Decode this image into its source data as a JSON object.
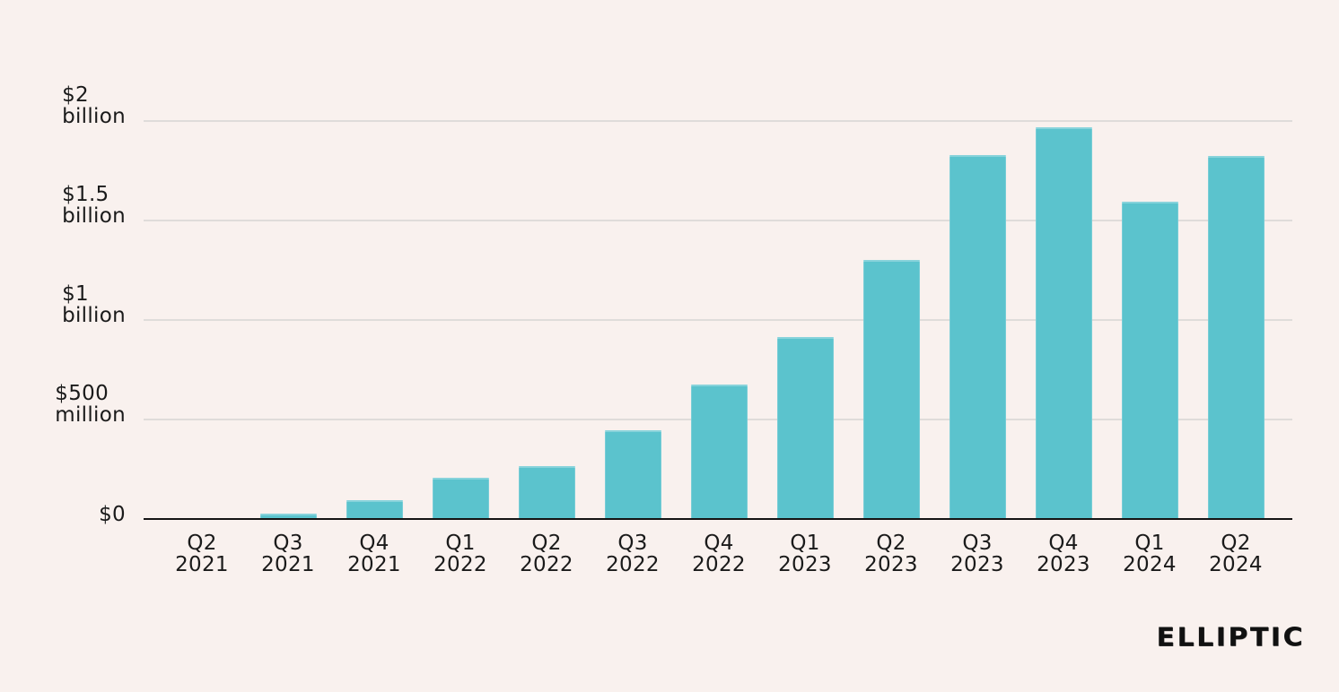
{
  "chart_data": {
    "type": "bar",
    "title": "",
    "categories": [
      "Q2 2021",
      "Q3 2021",
      "Q4 2021",
      "Q1 2022",
      "Q2 2022",
      "Q3 2022",
      "Q4 2022",
      "Q1 2023",
      "Q2 2023",
      "Q3 2023",
      "Q4 2023",
      "Q1 2024",
      "Q2 2024"
    ],
    "values_usd_millions": [
      5,
      25,
      95,
      205,
      267,
      447,
      674,
      916,
      1300,
      1830,
      1969,
      1595,
      1823
    ],
    "y_ticks": [
      {
        "value_millions": 2000,
        "label": "$2 billion"
      },
      {
        "value_millions": 1500,
        "label": "$1.5 billion"
      },
      {
        "value_millions": 1000,
        "label": "$1 billion"
      },
      {
        "value_millions": 500,
        "label": "$500 million"
      },
      {
        "value_millions": 0,
        "label": "$0"
      }
    ],
    "ylim_millions": [
      0,
      2000
    ],
    "xlabel": "",
    "ylabel": "",
    "grid": "horizontal",
    "legend": "none",
    "bar_color": "#5bc3cd",
    "background_color": "#f9f1ee",
    "gridline_color": "#dfdcda",
    "axis_color": "#141414",
    "text_color": "#1a1a1a"
  },
  "branding": {
    "logo_text": "ELLIPTIC"
  }
}
